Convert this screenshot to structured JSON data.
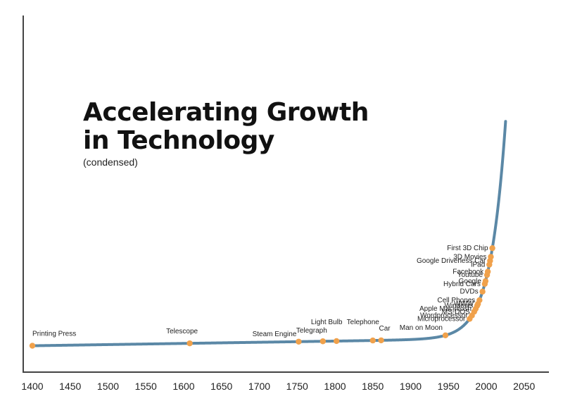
{
  "colors": {
    "curve": "#5b88a6",
    "marker": "#f0a14b",
    "axis": "#444444",
    "text": "#222222"
  },
  "chart_data": {
    "type": "line",
    "title": "Accelerating Growth",
    "title_line2": "in Technology",
    "subtitle": "(condensed)",
    "xlabel": "",
    "ylabel": "",
    "xlim": [
      1400,
      2050
    ],
    "x_ticks": [
      1400,
      1450,
      1500,
      1550,
      1600,
      1650,
      1700,
      1750,
      1800,
      1850,
      1900,
      1950,
      2000,
      2050
    ],
    "grid": false,
    "legend": "none",
    "events": [
      {
        "label": "Printing Press",
        "year": 1400
      },
      {
        "label": "Telescope",
        "year": 1608
      },
      {
        "label": "Steam Engine",
        "year": 1752
      },
      {
        "label": "Telegraph",
        "year": 1784
      },
      {
        "label": "Light Bulb",
        "year": 1802
      },
      {
        "label": "Telephone",
        "year": 1850
      },
      {
        "label": "Car",
        "year": 1861
      },
      {
        "label": "Man on Moon",
        "year": 1946
      },
      {
        "label": "Microprocessor",
        "year": 1978
      },
      {
        "label": "Wordprocessor",
        "year": 1981
      },
      {
        "label": "MS-DOS",
        "year": 1984
      },
      {
        "label": "Apple Macintosh",
        "year": 1986
      },
      {
        "label": "Windows",
        "year": 1988
      },
      {
        "label": "WWW",
        "year": 1989
      },
      {
        "label": "Cell Phones",
        "year": 1991
      },
      {
        "label": "DVDs",
        "year": 1995
      },
      {
        "label": "Hybrid Cars",
        "year": 1998
      },
      {
        "label": "Google",
        "year": 1999
      },
      {
        "label": "Youtube",
        "year": 2001
      },
      {
        "label": "Facebook",
        "year": 2002
      },
      {
        "label": "iPad",
        "year": 2004
      },
      {
        "label": "Google Driverless Car",
        "year": 2005
      },
      {
        "label": "3D Movies",
        "year": 2006
      },
      {
        "label": "First 3D Chip",
        "year": 2008
      }
    ]
  }
}
